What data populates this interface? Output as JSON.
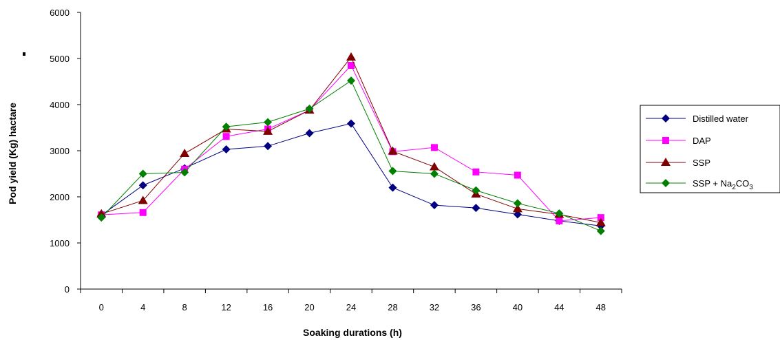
{
  "chart_data": {
    "type": "line",
    "title": "",
    "xlabel": "Soaking durations (h)",
    "ylabel": "Pod yield (Kg) hactare",
    "x": [
      0,
      4,
      8,
      12,
      16,
      20,
      24,
      28,
      32,
      36,
      40,
      44,
      48
    ],
    "x_ticks": [
      "0",
      "4",
      "8",
      "12",
      "16",
      "20",
      "24",
      "28",
      "32",
      "36",
      "40",
      "44",
      "48"
    ],
    "y_ticks": [
      "0",
      "1000",
      "2000",
      "3000",
      "4000",
      "5000",
      "6000"
    ],
    "ylim": [
      0,
      6000
    ],
    "grid": false,
    "legend_position": "right",
    "series": [
      {
        "name": "Distilled water",
        "marker": "diamond",
        "color": "#000080",
        "values": [
          1600,
          2250,
          2620,
          3030,
          3100,
          3380,
          3590,
          2200,
          1820,
          1760,
          1620,
          1480,
          1370
        ]
      },
      {
        "name": "DAP",
        "marker": "square",
        "color": "#FF00FF",
        "values": [
          1610,
          1660,
          2600,
          3310,
          3470,
          3880,
          4850,
          2980,
          3070,
          2540,
          2470,
          1480,
          1550
        ]
      },
      {
        "name": "SSP",
        "marker": "triangle",
        "color": "#800000",
        "values": [
          1630,
          1920,
          2940,
          3470,
          3420,
          3880,
          5030,
          2990,
          2650,
          2060,
          1740,
          1620,
          1440
        ]
      },
      {
        "name": "SSP + Na",
        "name_sub": "2",
        "name_suffix": "CO",
        "name_sub2": "3",
        "marker": "diamond",
        "color": "#008000",
        "values": [
          1550,
          2500,
          2530,
          3520,
          3620,
          3910,
          4520,
          2560,
          2500,
          2140,
          1860,
          1640,
          1260
        ]
      }
    ]
  }
}
